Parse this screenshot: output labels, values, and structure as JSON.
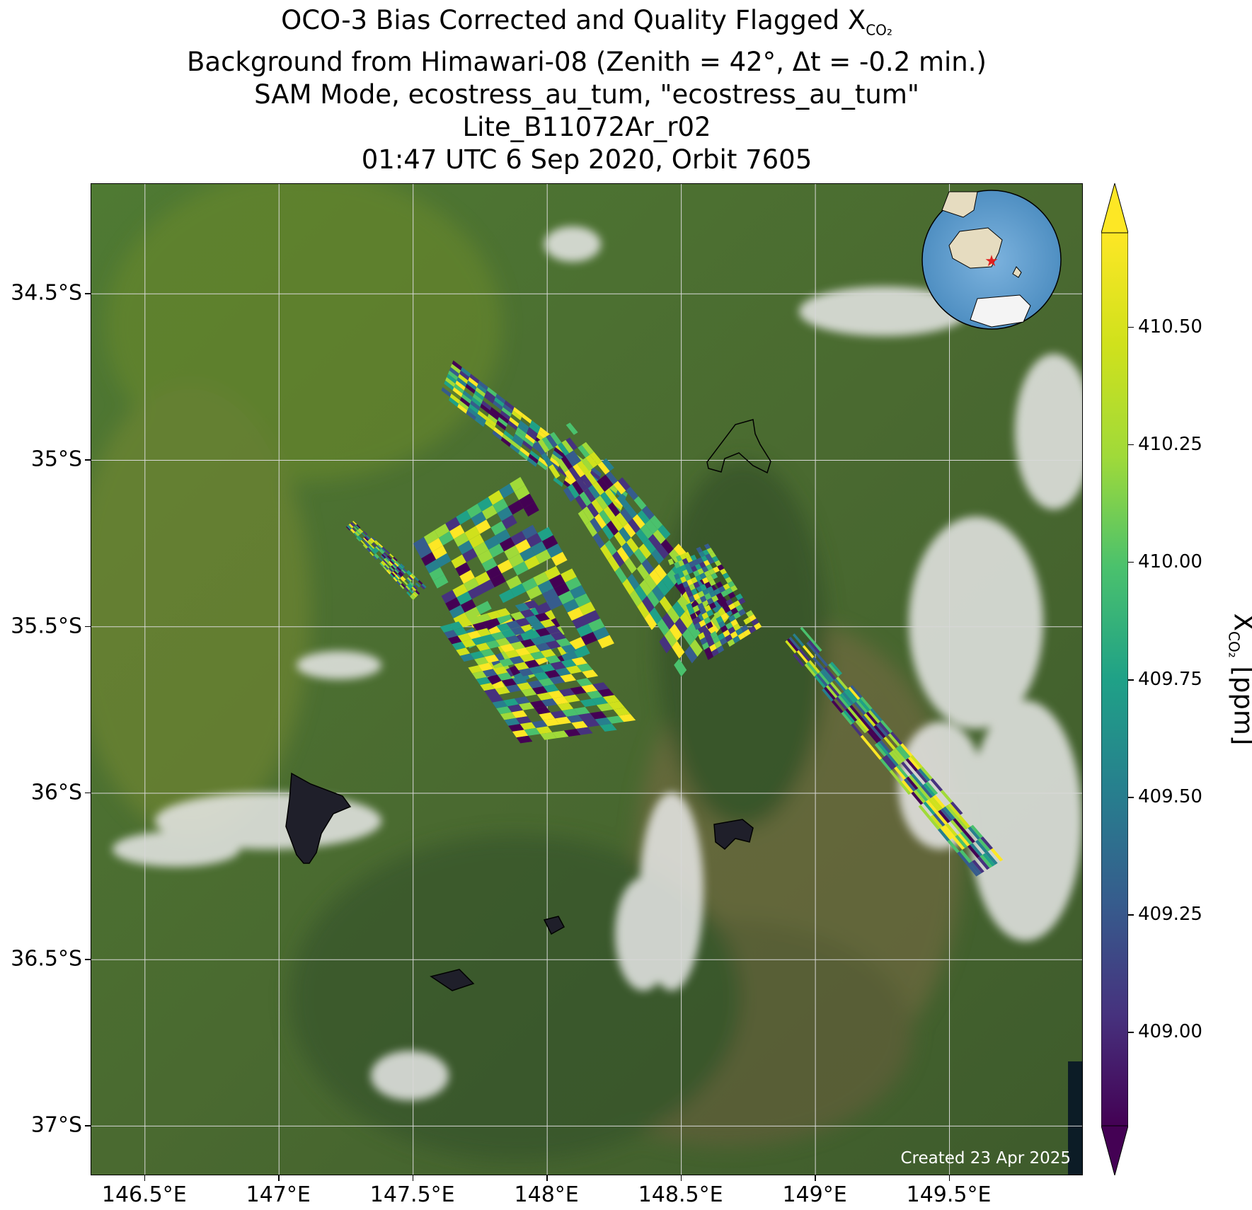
{
  "title": {
    "line1_text": "OCO-3 Bias Corrected and Quality Flagged X",
    "line1_sub": "CO₂",
    "line2": "Background from Himawari-08 (Zenith = 42°, Δt = -0.2 min.)",
    "line3": "SAM Mode, ecostress_au_tum, \"ecostress_au_tum\"",
    "line4": "Lite_B11072Ar_r02",
    "line5": "01:47 UTC 6 Sep 2020, Orbit 7605"
  },
  "map": {
    "lon_range": [
      146.3,
      150.0
    ],
    "lat_range": [
      -37.15,
      -34.17
    ],
    "lon_ticks": [
      146.5,
      147.0,
      147.5,
      148.0,
      148.5,
      149.0,
      149.5
    ],
    "lon_tick_labels": [
      "146.5°E",
      "147°E",
      "147.5°E",
      "148°E",
      "148.5°E",
      "149°E",
      "149.5°E"
    ],
    "lat_ticks": [
      -34.5,
      -35.0,
      -35.5,
      -36.0,
      -36.5,
      -37.0
    ],
    "lat_tick_labels": [
      "34.5°S",
      "35°S",
      "35.5°S",
      "36°S",
      "36.5°S",
      "37°S"
    ],
    "grid": true,
    "background": "satellite true-color imagery (Himawari-08)",
    "inset_globe": "orthographic globe with target location marked by red star",
    "created_note": "Created 23 Apr 2025"
  },
  "colorbar": {
    "colormap": "viridis",
    "range": [
      408.8,
      410.7
    ],
    "ticks": [
      409.0,
      409.25,
      409.5,
      409.75,
      410.0,
      410.25,
      410.5
    ],
    "tick_labels": [
      "409.00",
      "409.25",
      "409.50",
      "409.75",
      "410.00",
      "410.25",
      "410.50"
    ],
    "extend": "both",
    "label_text": "X",
    "label_sub": "CO₂",
    "label_unit": " [ppm]"
  },
  "colors": {
    "land": "#4a6b32",
    "cloud": "#e6e6e6",
    "star": "#e02020",
    "grid": "#d8d8d8"
  },
  "chart_data": {
    "type": "scatter",
    "title": "OCO-3 Bias Corrected and Quality Flagged XCO2",
    "xlabel": "",
    "ylabel": "",
    "xlim": [
      146.3,
      150.0
    ],
    "ylim": [
      -37.15,
      -34.17
    ],
    "color_variable": "XCO2 [ppm]",
    "swaths": [
      {
        "corners": [
          [
            147.6,
            -34.8
          ],
          [
            147.65,
            -34.7
          ],
          [
            148.3,
            -35.1
          ],
          [
            148.25,
            -35.2
          ]
        ]
      },
      {
        "corners": [
          [
            147.25,
            -35.2
          ],
          [
            147.28,
            -35.18
          ],
          [
            147.55,
            -35.38
          ],
          [
            147.5,
            -35.42
          ]
        ]
      },
      {
        "corners": [
          [
            147.5,
            -35.25
          ],
          [
            147.9,
            -35.05
          ],
          [
            148.25,
            -35.55
          ],
          [
            147.8,
            -35.7
          ]
        ]
      },
      {
        "corners": [
          [
            147.6,
            -35.5
          ],
          [
            147.95,
            -35.42
          ],
          [
            148.35,
            -35.8
          ],
          [
            147.9,
            -35.85
          ]
        ]
      },
      {
        "corners": [
          [
            147.95,
            -34.95
          ],
          [
            148.1,
            -34.88
          ],
          [
            148.7,
            -35.45
          ],
          [
            148.5,
            -35.65
          ]
        ]
      },
      {
        "corners": [
          [
            148.45,
            -35.3
          ],
          [
            148.6,
            -35.25
          ],
          [
            148.8,
            -35.5
          ],
          [
            148.6,
            -35.6
          ]
        ]
      },
      {
        "corners": [
          [
            148.88,
            -35.55
          ],
          [
            148.95,
            -35.5
          ],
          [
            149.7,
            -36.2
          ],
          [
            149.6,
            -36.25
          ]
        ]
      }
    ]
  }
}
